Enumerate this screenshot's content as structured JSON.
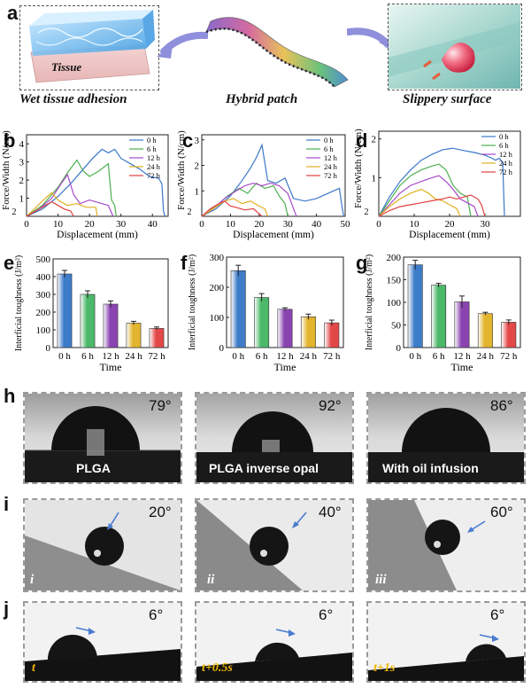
{
  "panel_labels": {
    "a": "a",
    "b": "b",
    "c": "c",
    "d": "d",
    "e": "e",
    "f": "f",
    "g": "g",
    "h": "h",
    "i": "i",
    "j": "j"
  },
  "panel_a": {
    "tissue_label": "Tissue",
    "caption_left": "Wet tissue adhesion",
    "caption_center": "Hybrid patch",
    "caption_right": "Slippery surface"
  },
  "chart_data": [
    {
      "id": "b",
      "type": "line",
      "xlabel": "Displacement (mm)",
      "ylabel": "Force/Width (N/cm)",
      "xlim": [
        0,
        45
      ],
      "ylim": [
        0,
        4.5
      ],
      "xticks": [
        0,
        10,
        20,
        30,
        40
      ],
      "yticks": [
        1,
        2,
        3,
        4
      ],
      "yaxis_extra_tick": "2",
      "legend": [
        "0 h",
        "6 h",
        "12 h",
        "24 h",
        "72 h"
      ],
      "series": [
        {
          "name": "0 h",
          "color": "#3b78c8",
          "points": [
            [
              0,
              0
            ],
            [
              5,
              0.4
            ],
            [
              10,
              1.1
            ],
            [
              14,
              1.8
            ],
            [
              18,
              2.6
            ],
            [
              21,
              3.2
            ],
            [
              24,
              3.7
            ],
            [
              26,
              3.5
            ],
            [
              28,
              3.7
            ],
            [
              30,
              3.2
            ],
            [
              33,
              2.9
            ],
            [
              36,
              2.6
            ],
            [
              39,
              2.2
            ],
            [
              42,
              2.1
            ],
            [
              43,
              1.8
            ],
            [
              43.5,
              0.3
            ],
            [
              44,
              0
            ]
          ]
        },
        {
          "name": "6 h",
          "color": "#4caf50",
          "points": [
            [
              0,
              0
            ],
            [
              5,
              0.6
            ],
            [
              10,
              1.6
            ],
            [
              13,
              2.4
            ],
            [
              16,
              3.1
            ],
            [
              18,
              2.5
            ],
            [
              20,
              2.2
            ],
            [
              23,
              2.5
            ],
            [
              26,
              2.9
            ],
            [
              27,
              0.9
            ],
            [
              28,
              0.6
            ],
            [
              28.5,
              0
            ]
          ]
        },
        {
          "name": "12 h",
          "color": "#a64ac9",
          "points": [
            [
              0,
              0
            ],
            [
              4,
              0.4
            ],
            [
              8,
              1.0
            ],
            [
              11,
              1.8
            ],
            [
              13,
              2.3
            ],
            [
              15,
              1.2
            ],
            [
              17,
              0.7
            ],
            [
              20,
              0.9
            ],
            [
              24,
              0.7
            ],
            [
              26,
              0.6
            ],
            [
              27,
              0.2
            ],
            [
              27.5,
              0
            ]
          ]
        },
        {
          "name": "24 h",
          "color": "#e0b020",
          "points": [
            [
              0,
              0
            ],
            [
              3,
              0.5
            ],
            [
              6,
              1.0
            ],
            [
              8,
              1.3
            ],
            [
              10,
              0.9
            ],
            [
              13,
              0.6
            ],
            [
              16,
              0.7
            ],
            [
              19,
              0.5
            ],
            [
              22,
              0.5
            ],
            [
              22.5,
              0
            ]
          ]
        },
        {
          "name": "72 h",
          "color": "#e04040",
          "points": [
            [
              0,
              0
            ],
            [
              3,
              0.3
            ],
            [
              6,
              0.6
            ],
            [
              8,
              0.8
            ],
            [
              10,
              0.6
            ],
            [
              12,
              0.4
            ],
            [
              14,
              0.3
            ],
            [
              15,
              0
            ]
          ]
        }
      ]
    },
    {
      "id": "c",
      "type": "line",
      "xlabel": "Displacement (mm)",
      "ylabel": "Force/Width (N/cm)",
      "xlim": [
        0,
        50
      ],
      "ylim": [
        0,
        3.2
      ],
      "xticks": [
        0,
        10,
        20,
        30,
        40,
        50
      ],
      "yticks": [
        1,
        2,
        3
      ],
      "yaxis_extra_tick": "2",
      "legend": [
        "0 h",
        "6 h",
        "12 h",
        "24 h",
        "72 h"
      ],
      "series": [
        {
          "name": "0 h",
          "color": "#3b78c8",
          "points": [
            [
              0,
              0
            ],
            [
              5,
              0.3
            ],
            [
              10,
              0.8
            ],
            [
              14,
              1.4
            ],
            [
              17,
              1.9
            ],
            [
              19,
              2.3
            ],
            [
              21,
              2.8
            ],
            [
              23,
              1.4
            ],
            [
              26,
              1.3
            ],
            [
              29,
              1.5
            ],
            [
              32,
              0.7
            ],
            [
              36,
              0.6
            ],
            [
              40,
              0.7
            ],
            [
              44,
              0.9
            ],
            [
              48,
              1.1
            ],
            [
              49,
              0.3
            ],
            [
              49.5,
              0
            ]
          ]
        },
        {
          "name": "6 h",
          "color": "#4caf50",
          "points": [
            [
              0,
              0
            ],
            [
              5,
              0.4
            ],
            [
              9,
              0.8
            ],
            [
              13,
              1.1
            ],
            [
              16,
              0.9
            ],
            [
              19,
              1.3
            ],
            [
              22,
              1.1
            ],
            [
              25,
              1.2
            ],
            [
              27,
              0.8
            ],
            [
              29,
              0.5
            ],
            [
              30,
              0
            ]
          ]
        },
        {
          "name": "12 h",
          "color": "#a64ac9",
          "points": [
            [
              0,
              0
            ],
            [
              4,
              0.3
            ],
            [
              8,
              0.7
            ],
            [
              12,
              1.0
            ],
            [
              15,
              1.2
            ],
            [
              18,
              1.3
            ],
            [
              21,
              1.2
            ],
            [
              24,
              1.3
            ],
            [
              27,
              1.2
            ],
            [
              30,
              0.9
            ],
            [
              32,
              0.3
            ],
            [
              33,
              0
            ]
          ]
        },
        {
          "name": "24 h",
          "color": "#e0b020",
          "points": [
            [
              0,
              0
            ],
            [
              4,
              0.3
            ],
            [
              8,
              0.6
            ],
            [
              11,
              0.7
            ],
            [
              14,
              0.5
            ],
            [
              17,
              0.6
            ],
            [
              20,
              0.4
            ],
            [
              22,
              0.3
            ],
            [
              23,
              0
            ]
          ]
        },
        {
          "name": "72 h",
          "color": "#e04040",
          "points": [
            [
              0,
              0
            ],
            [
              3,
              0.3
            ],
            [
              6,
              0.5
            ],
            [
              8,
              0.6
            ],
            [
              10,
              0.4
            ],
            [
              12,
              0.35
            ],
            [
              15,
              0.25
            ],
            [
              18,
              0.3
            ],
            [
              20,
              0.1
            ],
            [
              21,
              0
            ]
          ]
        }
      ]
    },
    {
      "id": "d",
      "type": "line",
      "xlabel": "Displacement (mm)",
      "ylabel": "Force/Width (N/cm)",
      "xlim": [
        0,
        40
      ],
      "ylim": [
        0,
        2.2
      ],
      "xticks": [
        0,
        10,
        20,
        30
      ],
      "yticks": [
        1,
        2
      ],
      "yaxis_extra_tick": "2",
      "legend": [
        "0 h",
        "6 h",
        "12 h",
        "24 h",
        "72 h"
      ],
      "series": [
        {
          "name": "0 h",
          "color": "#3b78c8",
          "points": [
            [
              0,
              0
            ],
            [
              3,
              0.5
            ],
            [
              6,
              0.9
            ],
            [
              9,
              1.2
            ],
            [
              12,
              1.45
            ],
            [
              15,
              1.6
            ],
            [
              18,
              1.72
            ],
            [
              21,
              1.76
            ],
            [
              24,
              1.7
            ],
            [
              27,
              1.65
            ],
            [
              30,
              1.58
            ],
            [
              32,
              1.5
            ],
            [
              33,
              1.45
            ],
            [
              34,
              1.5
            ],
            [
              35,
              1.4
            ],
            [
              35.5,
              0
            ]
          ]
        },
        {
          "name": "6 h",
          "color": "#4caf50",
          "points": [
            [
              0,
              0
            ],
            [
              3,
              0.4
            ],
            [
              6,
              0.8
            ],
            [
              9,
              1.05
            ],
            [
              12,
              1.2
            ],
            [
              15,
              1.3
            ],
            [
              17,
              1.35
            ],
            [
              19,
              1.2
            ],
            [
              21,
              0.8
            ],
            [
              23,
              0.6
            ],
            [
              25,
              0.5
            ],
            [
              26,
              0
            ]
          ]
        },
        {
          "name": "12 h",
          "color": "#a64ac9",
          "points": [
            [
              0,
              0
            ],
            [
              3,
              0.3
            ],
            [
              6,
              0.6
            ],
            [
              9,
              0.8
            ],
            [
              12,
              0.9
            ],
            [
              15,
              1.0
            ],
            [
              17,
              1.05
            ],
            [
              19,
              0.9
            ],
            [
              21,
              0.7
            ],
            [
              23,
              0.45
            ],
            [
              25,
              0.35
            ],
            [
              27,
              0.25
            ],
            [
              28,
              0
            ]
          ]
        },
        {
          "name": "24 h",
          "color": "#e0b020",
          "points": [
            [
              0,
              0
            ],
            [
              3,
              0.25
            ],
            [
              6,
              0.45
            ],
            [
              9,
              0.6
            ],
            [
              12,
              0.7
            ],
            [
              14,
              0.6
            ],
            [
              16,
              0.45
            ],
            [
              18,
              0.4
            ],
            [
              20,
              0.3
            ],
            [
              22,
              0.2
            ],
            [
              23,
              0
            ]
          ]
        },
        {
          "name": "72 h",
          "color": "#e04040",
          "points": [
            [
              0,
              0
            ],
            [
              3,
              0.15
            ],
            [
              6,
              0.25
            ],
            [
              9,
              0.3
            ],
            [
              12,
              0.35
            ],
            [
              15,
              0.4
            ],
            [
              18,
              0.45
            ],
            [
              20,
              0.5
            ],
            [
              22,
              0.45
            ],
            [
              24,
              0.5
            ],
            [
              26,
              0.55
            ],
            [
              28,
              0.45
            ],
            [
              29,
              0.3
            ],
            [
              30,
              0
            ]
          ]
        }
      ]
    },
    {
      "id": "e",
      "type": "bar",
      "xlabel": "Time",
      "ylabel": "Interficial toughness (J/m²)",
      "categories": [
        "0 h",
        "6 h",
        "12 h",
        "24 h",
        "72 h"
      ],
      "values": [
        415,
        300,
        245,
        138,
        108
      ],
      "errors": [
        20,
        20,
        18,
        10,
        8
      ],
      "ylim": [
        0,
        500
      ],
      "yticks": [
        0,
        100,
        200,
        300,
        400,
        500
      ],
      "colors": [
        "#3d7cc9",
        "#4cb86a",
        "#8a44b0",
        "#e3b42e",
        "#e24848"
      ]
    },
    {
      "id": "f",
      "type": "bar",
      "xlabel": "Time",
      "ylabel": "Interficial toughness (J/m²)",
      "categories": [
        "0 h",
        "6 h",
        "12 h",
        "24 h",
        "72 h"
      ],
      "values": [
        255,
        166,
        127,
        102,
        82
      ],
      "errors": [
        18,
        13,
        5,
        9,
        9
      ],
      "ylim": [
        0,
        300
      ],
      "yticks": [
        0,
        100,
        200,
        300
      ],
      "colors": [
        "#3d7cc9",
        "#4cb86a",
        "#8a44b0",
        "#e3b42e",
        "#e24848"
      ]
    },
    {
      "id": "g",
      "type": "bar",
      "xlabel": "Time",
      "ylabel": "Interficial toughness (J/m²)",
      "categories": [
        "0 h",
        "6 h",
        "12 h",
        "24 h",
        "72 h"
      ],
      "values": [
        183,
        138,
        101,
        75,
        56
      ],
      "errors": [
        10,
        4,
        13,
        3,
        5
      ],
      "ylim": [
        0,
        200
      ],
      "yticks": [
        0,
        50,
        100,
        150,
        200
      ],
      "colors": [
        "#3d7cc9",
        "#4cb86a",
        "#8a44b0",
        "#e3b42e",
        "#e24848"
      ]
    }
  ],
  "panel_h": [
    {
      "angle": "79°",
      "label": "PLGA",
      "fraction_of_circle": 0.62
    },
    {
      "angle": "92°",
      "label": "PLGA inverse opal",
      "fraction_of_circle": 0.55
    },
    {
      "angle": "86°",
      "label": "With oil infusion",
      "fraction_of_circle": 0.52
    }
  ],
  "panel_i": [
    {
      "angle": "20°",
      "roman": "i"
    },
    {
      "angle": "40°",
      "roman": "ii"
    },
    {
      "angle": "60°",
      "roman": "iii"
    }
  ],
  "panel_j": [
    {
      "angle": "6°",
      "time": "t"
    },
    {
      "angle": "6°",
      "time": "t+0.5s"
    },
    {
      "angle": "6°",
      "time": "t+1s"
    }
  ]
}
